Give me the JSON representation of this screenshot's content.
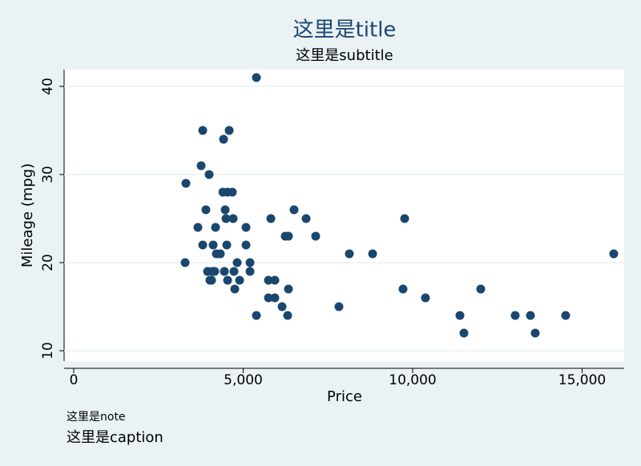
{
  "chart_data": {
    "type": "scatter",
    "title": "这里是title",
    "subtitle": "这里是subtitle",
    "x_label": "Price",
    "y_label": "Mileage (mpg)",
    "note": "这里是note",
    "caption": "这里是caption",
    "color": "#1a476f",
    "grid": true,
    "xlim": [
      -284,
      16241
    ],
    "ylim": [
      8.82,
      41.9
    ],
    "xticks": [
      0,
      {
        "value": 5000,
        "label": "5,000"
      },
      {
        "value": 10000,
        "label": "10,000"
      },
      {
        "value": 15000,
        "label": "15,000"
      }
    ],
    "yticks": [
      10,
      20,
      30,
      40
    ],
    "x": [
      5390,
      3806,
      4586,
      4421,
      3759,
      3310,
      3995,
      4400,
      4540,
      4680,
      3900,
      4468,
      6501,
      4492,
      4704,
      5816,
      6856,
      9764,
      3664,
      4184,
      5083,
      6241,
      6336,
      7139,
      3806,
      4113,
      4515,
      5083,
      4208,
      4326,
      8132,
      8818,
      15934,
      3286,
      4823,
      5201,
      3948,
      4090,
      4160,
      4444,
      4728,
      5201,
      4019,
      4066,
      4539,
      4894,
      5745,
      5934,
      4752,
      6336,
      9716,
      12009,
      5745,
      5934,
      10378,
      6147,
      7825,
      5390,
      6312,
      11395,
      13026,
      13475,
      14515,
      11513,
      13617
    ],
    "values": [
      41,
      35,
      35,
      34,
      31,
      29,
      30,
      28,
      28,
      28,
      26,
      26,
      26,
      25,
      25,
      25,
      25,
      25,
      24,
      24,
      24,
      23,
      23,
      23,
      22,
      22,
      22,
      22,
      21,
      21,
      21,
      21,
      21,
      20,
      20,
      20,
      19,
      19,
      19,
      19,
      19,
      19,
      18,
      18,
      18,
      18,
      18,
      18,
      17,
      17,
      17,
      17,
      16,
      16,
      16,
      15,
      15,
      14,
      14,
      14,
      14,
      14,
      14,
      12,
      12
    ]
  }
}
